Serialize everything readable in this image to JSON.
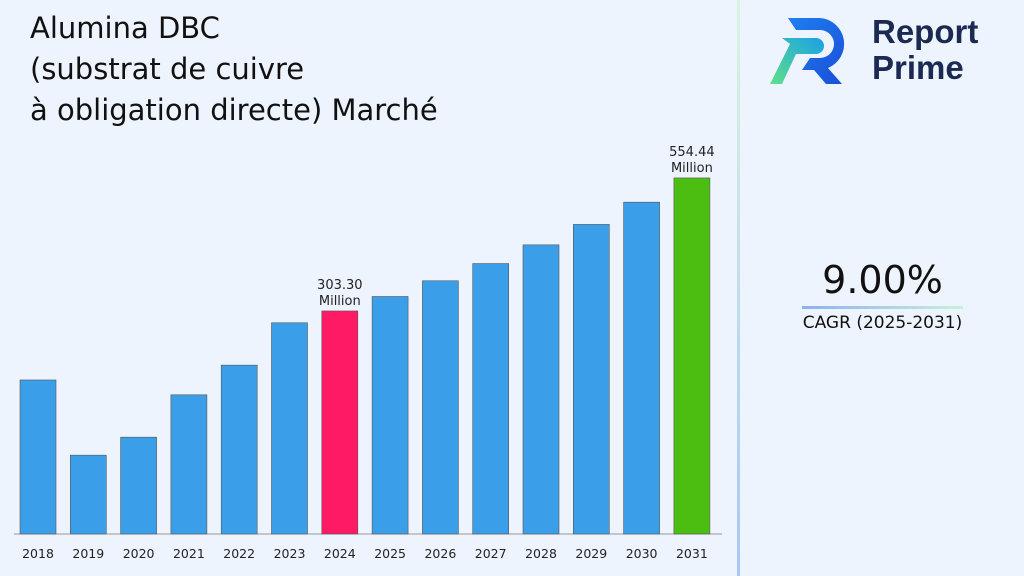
{
  "title_lines": [
    "Alumina DBC",
    "(substrat de cuivre",
    "à obligation directe) Marché"
  ],
  "logo": {
    "line1": "Report",
    "line2": "Prime"
  },
  "cagr": {
    "value": "9.00%",
    "label": "CAGR (2025-2031)"
  },
  "colors": {
    "bar": "#3a9fe8",
    "highlight_2024": "#ff1a66",
    "highlight_2031": "#4cbe12",
    "background": "#eef4fd"
  },
  "chart_data": {
    "type": "bar",
    "title": "Alumina DBC (substrat de cuivre à obligation directe) Marché",
    "categories": [
      "2018",
      "2019",
      "2020",
      "2021",
      "2022",
      "2023",
      "2024",
      "2025",
      "2026",
      "2027",
      "2028",
      "2029",
      "2030",
      "2031"
    ],
    "values": [
      173,
      31,
      65,
      145,
      201,
      281,
      303.3,
      330.6,
      360.3,
      392.8,
      428.1,
      466.7,
      508.7,
      554.44
    ],
    "data_labels": [
      {
        "category": "2024",
        "value_text": "303.30",
        "unit": "Million"
      },
      {
        "category": "2031",
        "value_text": "554.44",
        "unit": "Million"
      }
    ],
    "xlabel": "",
    "ylabel": "",
    "grid": false,
    "legend": "none"
  }
}
